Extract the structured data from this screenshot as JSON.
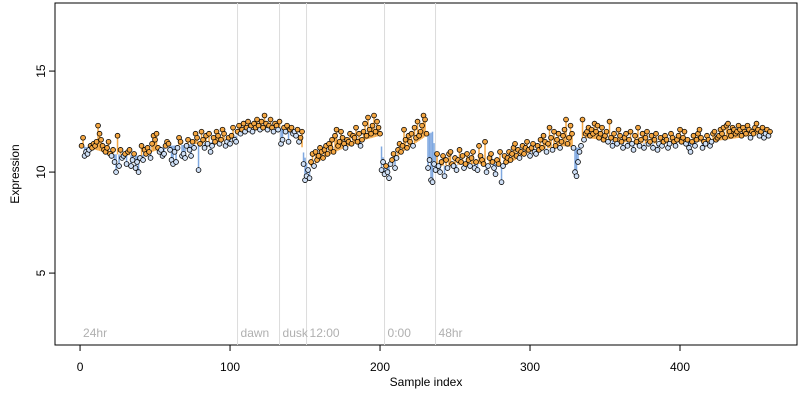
{
  "chart_data": {
    "type": "scatter",
    "xlabel": "Sample index",
    "ylabel": "Expression",
    "xlim": [
      -16.7,
      478
    ],
    "ylim": [
      1.44,
      18.37
    ],
    "xticks": [
      0,
      100,
      200,
      300,
      400
    ],
    "yticks": [
      5,
      10,
      15
    ],
    "above_color": "#f5a742",
    "below_color": "#7fa8e0",
    "vlines": [
      105,
      133,
      151,
      203,
      237
    ],
    "annotations": [
      {
        "x": 0,
        "label": "24hr"
      },
      {
        "x": 105,
        "label": "dawn"
      },
      {
        "x": 133,
        "label": "dusk"
      },
      {
        "x": 151,
        "label": "12:00"
      },
      {
        "x": 203,
        "label": "0:00"
      },
      {
        "x": 237,
        "label": "48hr"
      }
    ],
    "trend": {
      "x": [
        1,
        20,
        40,
        60,
        80,
        100,
        110,
        130,
        145,
        152,
        170,
        190,
        200,
        203,
        215,
        235,
        238,
        260,
        285,
        300,
        320,
        333,
        336,
        360,
        380,
        400,
        420,
        440,
        460
      ],
      "values": [
        11.3,
        10.9,
        10.8,
        11.3,
        11.4,
        11.6,
        12.1,
        12.2,
        12.0,
        10.2,
        11.0,
        11.6,
        11.8,
        10.2,
        11.0,
        12.0,
        10.3,
        10.4,
        10.4,
        11.0,
        11.3,
        11.2,
        11.7,
        11.5,
        11.4,
        11.5,
        11.5,
        11.7,
        12.0
      ]
    },
    "x": [
      1,
      2,
      3,
      4,
      5,
      6,
      7,
      8,
      9,
      10,
      11,
      12,
      13,
      14,
      15,
      16,
      17,
      18,
      19,
      20,
      21,
      22,
      23,
      24,
      25,
      26,
      27,
      28,
      29,
      30,
      31,
      32,
      33,
      34,
      35,
      36,
      37,
      38,
      39,
      40,
      41,
      42,
      43,
      44,
      45,
      46,
      47,
      48,
      49,
      50,
      51,
      52,
      53,
      54,
      55,
      56,
      57,
      58,
      59,
      60,
      61,
      62,
      63,
      64,
      65,
      66,
      67,
      68,
      69,
      70,
      71,
      72,
      73,
      74,
      75,
      76,
      77,
      78,
      79,
      80,
      81,
      82,
      83,
      84,
      85,
      86,
      87,
      88,
      89,
      90,
      91,
      92,
      93,
      94,
      95,
      96,
      97,
      98,
      99,
      100,
      101,
      102,
      103,
      104,
      105,
      106,
      107,
      108,
      109,
      110,
      111,
      112,
      113,
      114,
      115,
      116,
      117,
      118,
      119,
      120,
      121,
      122,
      123,
      124,
      125,
      126,
      127,
      128,
      129,
      130,
      131,
      132,
      133,
      134,
      135,
      136,
      137,
      138,
      139,
      140,
      141,
      142,
      143,
      144,
      145,
      146,
      147,
      148,
      149,
      150,
      151,
      152,
      153,
      154,
      155,
      156,
      157,
      158,
      159,
      160,
      161,
      162,
      163,
      164,
      165,
      166,
      167,
      168,
      169,
      170,
      171,
      172,
      173,
      174,
      175,
      176,
      177,
      178,
      179,
      180,
      181,
      182,
      183,
      184,
      185,
      186,
      187,
      188,
      189,
      190,
      191,
      192,
      193,
      194,
      195,
      196,
      197,
      198,
      199,
      200,
      201,
      202,
      203,
      204,
      205,
      206,
      207,
      208,
      209,
      210,
      211,
      212,
      213,
      214,
      215,
      216,
      217,
      218,
      219,
      220,
      221,
      222,
      223,
      224,
      225,
      226,
      227,
      228,
      229,
      230,
      231,
      232,
      233,
      234,
      235,
      236,
      237,
      238,
      239,
      240,
      241,
      242,
      243,
      244,
      245,
      246,
      247,
      248,
      249,
      250,
      251,
      252,
      253,
      254,
      255,
      256,
      257,
      258,
      259,
      260,
      261,
      262,
      263,
      264,
      265,
      266,
      267,
      268,
      269,
      270,
      271,
      272,
      273,
      274,
      275,
      276,
      277,
      278,
      279,
      280,
      281,
      282,
      283,
      284,
      285,
      286,
      287,
      288,
      289,
      290,
      291,
      292,
      293,
      294,
      295,
      296,
      297,
      298,
      299,
      300,
      301,
      302,
      303,
      304,
      305,
      306,
      307,
      308,
      309,
      310,
      311,
      312,
      313,
      314,
      315,
      316,
      317,
      318,
      319,
      320,
      321,
      322,
      323,
      324,
      325,
      326,
      327,
      328,
      329,
      330,
      331,
      332,
      333,
      334,
      335,
      336,
      337,
      338,
      339,
      340,
      341,
      342,
      343,
      344,
      345,
      346,
      347,
      348,
      349,
      350,
      351,
      352,
      353,
      354,
      355,
      356,
      357,
      358,
      359,
      360,
      361,
      362,
      363,
      364,
      365,
      366,
      367,
      368,
      369,
      370,
      371,
      372,
      373,
      374,
      375,
      376,
      377,
      378,
      379,
      380,
      381,
      382,
      383,
      384,
      385,
      386,
      387,
      388,
      389,
      390,
      391,
      392,
      393,
      394,
      395,
      396,
      397,
      398,
      399,
      400,
      401,
      402,
      403,
      404,
      405,
      406,
      407,
      408,
      409,
      410,
      411,
      412,
      413,
      414,
      415,
      416,
      417,
      418,
      419,
      420,
      421,
      422,
      423,
      424,
      425,
      426,
      427,
      428,
      429,
      430,
      431,
      432,
      433,
      434,
      435,
      436,
      437,
      438,
      439,
      440,
      441,
      442,
      443,
      444,
      445,
      446,
      447,
      448,
      449,
      450,
      451,
      452,
      453,
      454,
      455,
      456,
      457,
      458,
      459,
      460
    ],
    "values": [
      11.3,
      11.7,
      10.8,
      11.0,
      10.9,
      11.1,
      11.3,
      11.2,
      11.4,
      11.3,
      11.5,
      12.3,
      11.9,
      11.6,
      11.3,
      11.1,
      11.0,
      11.2,
      11.5,
      10.9,
      10.8,
      11.1,
      10.5,
      10.0,
      11.8,
      10.3,
      11.1,
      10.7,
      10.8,
      10.9,
      10.4,
      11.0,
      11.1,
      10.3,
      10.6,
      10.9,
      10.2,
      10.5,
      10.0,
      10.7,
      11.3,
      10.6,
      11.1,
      10.9,
      11.2,
      11.0,
      10.7,
      11.4,
      11.8,
      11.6,
      11.9,
      11.2,
      11.0,
      11.1,
      10.8,
      10.9,
      11.3,
      11.5,
      11.4,
      11.1,
      10.6,
      10.4,
      11.0,
      10.5,
      11.2,
      11.7,
      11.5,
      10.8,
      10.9,
      10.7,
      11.3,
      11.6,
      11.1,
      10.8,
      11.5,
      11.2,
      11.9,
      11.7,
      10.1,
      11.4,
      12.0,
      11.6,
      11.2,
      11.8,
      11.4,
      11.9,
      11.0,
      11.3,
      11.7,
      11.5,
      12.0,
      11.8,
      11.4,
      11.6,
      12.1,
      11.9,
      11.3,
      11.5,
      11.7,
      11.4,
      11.8,
      12.2,
      11.6,
      11.5,
      12.0,
      12.3,
      11.9,
      12.1,
      12.4,
      12.0,
      12.2,
      12.5,
      12.1,
      12.3,
      12.0,
      12.4,
      12.2,
      12.6,
      12.3,
      12.1,
      12.5,
      12.2,
      12.8,
      12.4,
      12.1,
      12.3,
      12.6,
      12.2,
      12.0,
      12.4,
      12.3,
      12.1,
      12.5,
      11.4,
      11.6,
      12.2,
      12.0,
      12.3,
      11.5,
      12.1,
      12.2,
      11.9,
      12.0,
      11.8,
      12.1,
      11.5,
      11.7,
      12.0,
      10.4,
      9.6,
      9.8,
      10.1,
      9.7,
      10.5,
      10.9,
      10.3,
      11.0,
      10.6,
      10.8,
      11.2,
      11.0,
      10.7,
      11.1,
      11.3,
      10.9,
      11.4,
      11.2,
      11.6,
      11.0,
      11.8,
      12.1,
      11.3,
      11.5,
      12.0,
      11.7,
      11.4,
      11.2,
      11.6,
      11.5,
      11.9,
      11.4,
      11.8,
      11.7,
      12.2,
      11.5,
      11.9,
      11.3,
      11.6,
      12.0,
      12.4,
      11.8,
      12.7,
      12.1,
      11.9,
      12.3,
      12.8,
      12.0,
      12.5,
      12.2,
      11.9,
      10.1,
      10.5,
      9.9,
      10.3,
      10.0,
      9.7,
      10.4,
      10.6,
      10.9,
      10.2,
      10.7,
      11.1,
      11.4,
      11.0,
      11.3,
      12.1,
      11.6,
      11.2,
      11.8,
      11.5,
      11.9,
      11.3,
      12.2,
      11.7,
      12.5,
      11.8,
      12.0,
      12.3,
      12.8,
      12.6,
      11.9,
      10.2,
      10.6,
      9.6,
      9.5,
      10.4,
      10.1,
      10.9,
      10.3,
      10.0,
      10.5,
      10.8,
      9.8,
      10.6,
      10.2,
      10.9,
      11.0,
      10.4,
      10.3,
      10.7,
      10.1,
      10.6,
      11.1,
      10.5,
      10.8,
      10.2,
      10.4,
      10.9,
      10.6,
      10.3,
      10.7,
      11.0,
      10.2,
      10.5,
      10.1,
      11.3,
      10.8,
      10.6,
      10.4,
      11.5,
      10.0,
      10.3,
      10.7,
      10.9,
      10.5,
      10.2,
      9.9,
      10.6,
      10.4,
      11.0,
      9.5,
      10.3,
      10.8,
      10.5,
      10.7,
      11.0,
      10.6,
      10.9,
      11.2,
      11.4,
      10.8,
      11.1,
      10.7,
      11.0,
      11.3,
      10.9,
      11.2,
      11.5,
      11.1,
      10.8,
      11.2,
      11.4,
      11.0,
      10.9,
      11.3,
      11.1,
      11.6,
      11.2,
      11.8,
      11.5,
      11.0,
      11.4,
      12.2,
      11.7,
      11.1,
      12.0,
      11.3,
      11.6,
      11.9,
      11.2,
      11.5,
      11.8,
      12.1,
      12.6,
      11.4,
      11.7,
      12.3,
      11.9,
      11.2,
      10.0,
      9.8,
      10.5,
      11.0,
      11.3,
      12.6,
      11.6,
      11.9,
      12.0,
      12.2,
      11.8,
      12.1,
      11.9,
      12.4,
      12.0,
      12.3,
      11.7,
      11.9,
      12.2,
      11.6,
      11.8,
      12.0,
      11.5,
      12.5,
      11.7,
      11.3,
      11.9,
      11.6,
      11.4,
      12.1,
      11.8,
      11.5,
      11.2,
      11.7,
      11.9,
      11.3,
      11.6,
      12.0,
      11.4,
      11.1,
      11.8,
      11.5,
      12.2,
      11.3,
      11.6,
      11.9,
      11.2,
      11.7,
      12.0,
      11.4,
      11.5,
      11.8,
      11.2,
      11.6,
      11.9,
      11.1,
      11.4,
      11.7,
      11.3,
      11.5,
      11.8,
      11.6,
      11.2,
      11.4,
      11.9,
      11.7,
      11.5,
      11.3,
      11.6,
      11.8,
      12.1,
      11.5,
      11.7,
      12.0,
      11.4,
      11.6,
      11.2,
      11.0,
      11.5,
      11.8,
      11.3,
      11.6,
      11.9,
      12.1,
      11.7,
      11.2,
      11.5,
      11.4,
      11.8,
      11.6,
      11.3,
      11.5,
      11.9,
      12.0,
      11.6,
      11.7,
      11.8,
      12.1,
      11.9,
      12.2,
      11.7,
      12.3,
      12.4,
      12.0,
      11.8,
      12.2,
      12.1,
      11.9,
      12.0,
      12.3,
      12.1,
      11.8,
      12.2,
      12.0,
      11.9,
      12.3,
      12.1,
      11.7,
      12.0,
      11.9,
      12.2,
      12.4,
      12.1,
      11.8,
      12.0,
      12.2,
      11.7,
      11.9,
      12.1,
      11.8,
      12.0
    ]
  }
}
